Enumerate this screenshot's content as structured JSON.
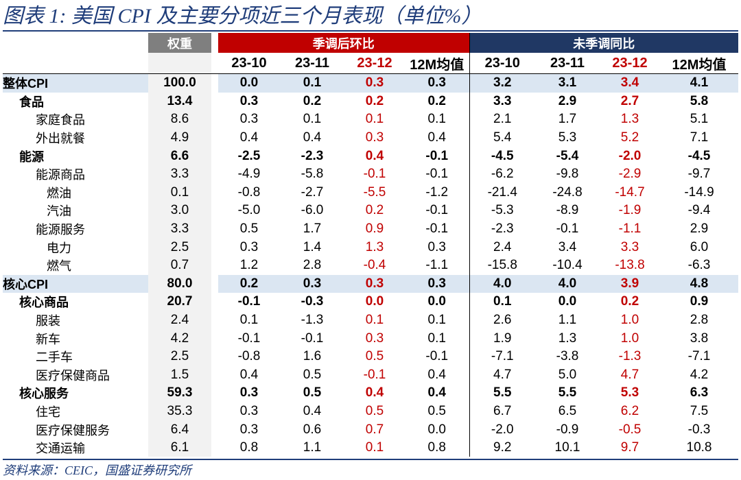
{
  "title": "图表 1:  美国 CPI 及主要分项近三个月表现（单位%）",
  "source": "资料来源：CEIC，国盛证券研究所",
  "group_headers": {
    "weight": "权重",
    "sa_mom": "季调后环比",
    "nsa_yoy": "未季调同比"
  },
  "periods": [
    "23-10",
    "23-11",
    "23-12",
    "12M均值"
  ],
  "colors": {
    "accent_red": "#c00000",
    "header_navy": "#203864",
    "weight_gray": "#7f7f7f",
    "row_shade": "#dbe6f2",
    "title_blue": "#1f3d7a"
  },
  "rows": [
    {
      "label": "整体CPI",
      "weight": "100.0",
      "mom": [
        "0.0",
        "0.1",
        "0.3",
        "0.3"
      ],
      "yoy": [
        "3.2",
        "3.1",
        "3.4",
        "4.1"
      ]
    },
    {
      "label": "食品",
      "weight": "13.4",
      "mom": [
        "0.3",
        "0.2",
        "0.2",
        "0.2"
      ],
      "yoy": [
        "3.3",
        "2.9",
        "2.7",
        "5.8"
      ]
    },
    {
      "label": "家庭食品",
      "weight": "8.6",
      "mom": [
        "0.3",
        "0.1",
        "0.1",
        "0.1"
      ],
      "yoy": [
        "2.1",
        "1.7",
        "1.3",
        "5.1"
      ]
    },
    {
      "label": "外出就餐",
      "weight": "4.9",
      "mom": [
        "0.4",
        "0.4",
        "0.3",
        "0.4"
      ],
      "yoy": [
        "5.4",
        "5.3",
        "5.2",
        "7.1"
      ]
    },
    {
      "label": "能源",
      "weight": "6.6",
      "mom": [
        "-2.5",
        "-2.3",
        "0.4",
        "-0.1"
      ],
      "yoy": [
        "-4.5",
        "-5.4",
        "-2.0",
        "-4.5"
      ]
    },
    {
      "label": "能源商品",
      "weight": "3.3",
      "mom": [
        "-4.9",
        "-5.8",
        "-0.1",
        "-0.1"
      ],
      "yoy": [
        "-6.2",
        "-9.8",
        "-2.9",
        "-9.7"
      ]
    },
    {
      "label": "燃油",
      "weight": "0.1",
      "mom": [
        "-0.8",
        "-2.7",
        "-5.5",
        "-1.2"
      ],
      "yoy": [
        "-21.4",
        "-24.8",
        "-14.7",
        "-14.9"
      ]
    },
    {
      "label": "汽油",
      "weight": "3.0",
      "mom": [
        "-5.0",
        "-6.0",
        "0.2",
        "-0.1"
      ],
      "yoy": [
        "-5.3",
        "-8.9",
        "-1.9",
        "-9.4"
      ]
    },
    {
      "label": "能源服务",
      "weight": "3.3",
      "mom": [
        "0.5",
        "1.7",
        "0.9",
        "-0.1"
      ],
      "yoy": [
        "-2.3",
        "-0.1",
        "-1.1",
        "2.9"
      ]
    },
    {
      "label": "电力",
      "weight": "2.5",
      "mom": [
        "0.3",
        "1.4",
        "1.3",
        "0.3"
      ],
      "yoy": [
        "2.4",
        "3.4",
        "3.3",
        "6.0"
      ]
    },
    {
      "label": "燃气",
      "weight": "0.7",
      "mom": [
        "1.2",
        "2.8",
        "-0.4",
        "-1.1"
      ],
      "yoy": [
        "-15.8",
        "-10.4",
        "-13.8",
        "-6.3"
      ]
    },
    {
      "label": "核心CPI",
      "weight": "80.0",
      "mom": [
        "0.2",
        "0.3",
        "0.3",
        "0.3"
      ],
      "yoy": [
        "4.0",
        "4.0",
        "3.9",
        "4.8"
      ]
    },
    {
      "label": "核心商品",
      "weight": "20.7",
      "mom": [
        "-0.1",
        "-0.3",
        "0.0",
        "0.0"
      ],
      "yoy": [
        "0.1",
        "0.0",
        "0.2",
        "0.9"
      ]
    },
    {
      "label": "服装",
      "weight": "2.4",
      "mom": [
        "0.1",
        "-1.3",
        "0.1",
        "0.1"
      ],
      "yoy": [
        "2.6",
        "1.1",
        "1.0",
        "2.8"
      ]
    },
    {
      "label": "新车",
      "weight": "4.2",
      "mom": [
        "-0.1",
        "-0.1",
        "0.3",
        "0.1"
      ],
      "yoy": [
        "1.9",
        "1.3",
        "1.0",
        "3.8"
      ]
    },
    {
      "label": "二手车",
      "weight": "2.5",
      "mom": [
        "-0.8",
        "1.6",
        "0.5",
        "-0.1"
      ],
      "yoy": [
        "-7.1",
        "-3.8",
        "-1.3",
        "-7.1"
      ]
    },
    {
      "label": "医疗保健商品",
      "weight": "1.5",
      "mom": [
        "0.4",
        "0.5",
        "-0.1",
        "0.4"
      ],
      "yoy": [
        "4.7",
        "5.0",
        "4.7",
        "4.2"
      ]
    },
    {
      "label": "核心服务",
      "weight": "59.3",
      "mom": [
        "0.3",
        "0.5",
        "0.4",
        "0.4"
      ],
      "yoy": [
        "5.5",
        "5.5",
        "5.3",
        "6.3"
      ]
    },
    {
      "label": "住宅",
      "weight": "35.3",
      "mom": [
        "0.3",
        "0.4",
        "0.5",
        "0.5"
      ],
      "yoy": [
        "6.7",
        "6.5",
        "6.2",
        "7.5"
      ]
    },
    {
      "label": "医疗保健服务",
      "weight": "6.4",
      "mom": [
        "0.3",
        "0.6",
        "0.7",
        "0.0"
      ],
      "yoy": [
        "-2.0",
        "-0.9",
        "-0.5",
        "-0.3"
      ]
    },
    {
      "label": "交通运输",
      "weight": "6.1",
      "mom": [
        "0.8",
        "1.1",
        "0.1",
        "0.8"
      ],
      "yoy": [
        "9.2",
        "10.1",
        "9.7",
        "10.8"
      ]
    }
  ]
}
